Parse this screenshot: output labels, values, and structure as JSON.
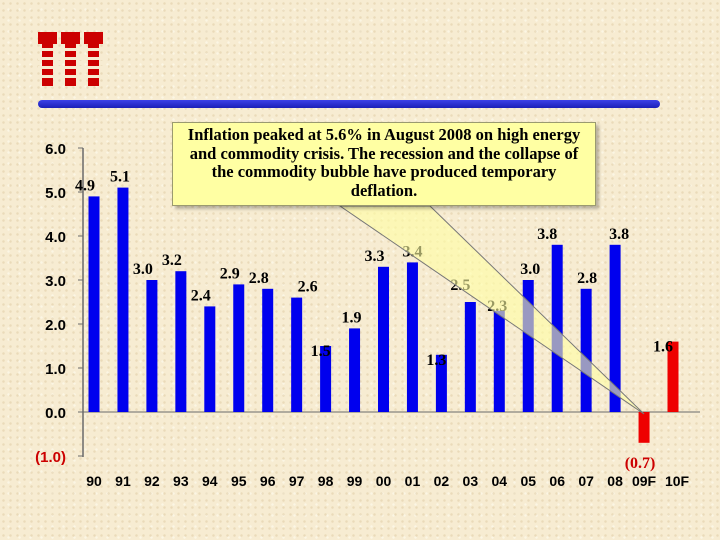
{
  "colors": {
    "bar": "#0000ee",
    "forecast_bar": "#ee0000",
    "negative_label": "#cc0000",
    "logo": "#cc0000",
    "callout": "#ffffa3"
  },
  "logo": {
    "text": "iii",
    "icon": "iii-logo"
  },
  "annotation": {
    "text": "Inflation peaked at 5.6% in August 2008 on high energy and commodity crisis. The recession and the collapse of the commodity bubble have produced temporary deflation."
  },
  "chart_data": {
    "type": "bar",
    "categories": [
      "90",
      "91",
      "92",
      "93",
      "94",
      "95",
      "96",
      "97",
      "98",
      "99",
      "00",
      "01",
      "02",
      "03",
      "04",
      "05",
      "06",
      "07",
      "08",
      "09F",
      "10F"
    ],
    "values": [
      4.9,
      5.1,
      3.0,
      3.2,
      2.4,
      2.9,
      2.8,
      2.6,
      1.5,
      1.9,
      3.3,
      3.4,
      1.3,
      2.5,
      2.3,
      3.0,
      3.8,
      2.8,
      3.8,
      -0.7,
      1.6
    ],
    "value_labels": [
      "4.9",
      "5.1",
      "3.0",
      "3.2",
      "2.4",
      "2.9",
      "2.8",
      "2.6",
      "1.5",
      "1.9",
      "3.3",
      "3.4",
      "1.3",
      "2.5",
      "2.3",
      "3.0",
      "3.8",
      "2.8",
      "3.8",
      "(0.7)",
      "1.6"
    ],
    "forecast_categories": [
      "09F",
      "10F"
    ],
    "ylim": [
      -1.0,
      6.0
    ],
    "y_ticks": [
      6.0,
      5.0,
      4.0,
      3.0,
      2.0,
      1.0,
      0.0,
      -1.0
    ],
    "y_tick_labels": [
      "6.0",
      "5.0",
      "4.0",
      "3.0",
      "2.0",
      "1.0",
      "0.0",
      "(1.0)"
    ],
    "grid": false,
    "legend": "none"
  }
}
